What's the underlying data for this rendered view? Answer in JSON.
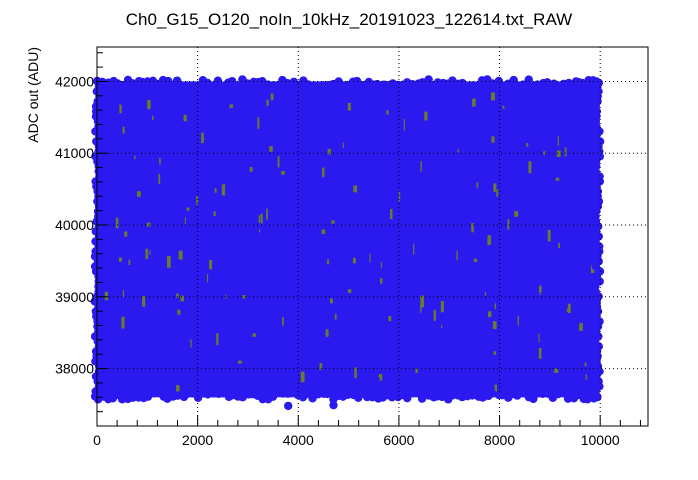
{
  "chart_data": {
    "type": "scatter",
    "title": "Ch0_G15_O120_noIn_10kHz_20191023_122614.txt_RAW",
    "xlabel": "",
    "ylabel": "ADC out (ADU)",
    "xlim": [
      0,
      10950
    ],
    "ylim": [
      37200,
      42480
    ],
    "xticks": [
      0,
      2000,
      4000,
      6000,
      8000,
      10000
    ],
    "yticks": [
      38000,
      39000,
      40000,
      41000,
      42000
    ],
    "xtick_labels": [
      "0",
      "2000",
      "4000",
      "6000",
      "8000",
      "10000"
    ],
    "ytick_labels": [
      "38000",
      "39000",
      "40000",
      "41000",
      "42000"
    ],
    "grid": true,
    "series": [
      {
        "marker_color": "#2a1af0",
        "fill_color": "#6b7a2e",
        "x_range": [
          0,
          9950
        ],
        "y_band": [
          37600,
          42000
        ],
        "outliers": [
          {
            "x": 3800,
            "y": 37480
          },
          {
            "x": 4700,
            "y": 37490
          },
          {
            "x": 7750,
            "y": 42000
          },
          {
            "x": 9520,
            "y": 42000
          }
        ]
      }
    ]
  }
}
